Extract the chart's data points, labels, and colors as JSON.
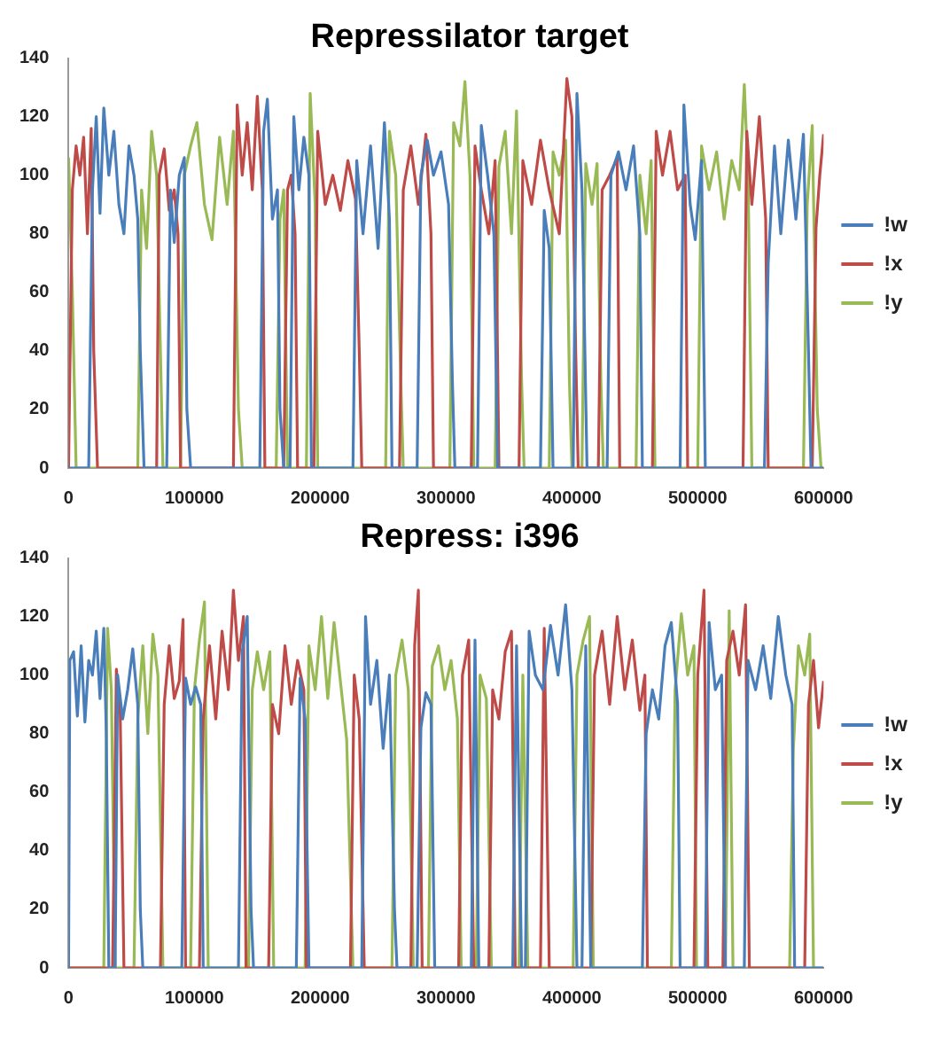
{
  "chart_data": [
    {
      "type": "line",
      "title": "Repressilator target",
      "xlim": [
        0,
        600000
      ],
      "xticks": [
        0,
        100000,
        200000,
        300000,
        400000,
        500000,
        600000
      ],
      "ylim": [
        0,
        140
      ],
      "yticks": [
        0,
        20,
        40,
        60,
        80,
        100,
        120,
        140
      ],
      "grid": false,
      "legend": "right",
      "marker": "none",
      "line_style": "solid",
      "series": [
        {
          "name": "!w",
          "color": "#4a7ebb",
          "x": [
            0,
            16000,
            19000,
            22000,
            25000,
            28000,
            32000,
            36000,
            40000,
            44000,
            48000,
            52000,
            55000,
            57000,
            60000,
            78000,
            81000,
            84000,
            88000,
            92000,
            94000,
            97000,
            152000,
            155000,
            158000,
            162000,
            166000,
            168000,
            171000,
            176000,
            179000,
            183000,
            187000,
            191000,
            193000,
            226000,
            229000,
            234000,
            240000,
            246000,
            251000,
            255000,
            257000,
            277000,
            280000,
            285000,
            290000,
            296000,
            302000,
            305000,
            307000,
            325000,
            328000,
            333000,
            338000,
            341000,
            375000,
            378000,
            382000,
            385000,
            401000,
            404000,
            408000,
            412000,
            428000,
            431000,
            437000,
            443000,
            449000,
            454000,
            456000,
            486000,
            489000,
            494000,
            498000,
            503000,
            506000,
            553000,
            556000,
            561000,
            566000,
            572000,
            578000,
            584000,
            588000,
            590000,
            600000
          ],
          "values": [
            0,
            0,
            95,
            120,
            87,
            123,
            100,
            115,
            90,
            80,
            110,
            100,
            85,
            40,
            0,
            0,
            95,
            77,
            100,
            106,
            20,
            0,
            0,
            115,
            126,
            85,
            95,
            20,
            0,
            0,
            120,
            95,
            113,
            100,
            0,
            0,
            105,
            80,
            110,
            75,
            118,
            85,
            0,
            0,
            100,
            112,
            100,
            108,
            90,
            30,
            0,
            0,
            117,
            100,
            80,
            0,
            0,
            88,
            75,
            0,
            0,
            128,
            95,
            0,
            0,
            100,
            108,
            95,
            110,
            80,
            0,
            0,
            124,
            90,
            78,
            105,
            0,
            0,
            70,
            110,
            80,
            112,
            85,
            114,
            40,
            0,
            0
          ]
        },
        {
          "name": "!x",
          "color": "#be4b48",
          "x": [
            0,
            3000,
            6000,
            9000,
            12000,
            15000,
            18000,
            20000,
            23000,
            70000,
            72000,
            76000,
            80000,
            84000,
            87000,
            89000,
            131000,
            134000,
            138000,
            142000,
            146000,
            150000,
            154000,
            156000,
            171000,
            174000,
            177000,
            180000,
            182000,
            195000,
            198000,
            204000,
            210000,
            216000,
            222000,
            228000,
            231000,
            233000,
            263000,
            266000,
            272000,
            278000,
            284000,
            288000,
            290000,
            320000,
            323000,
            328000,
            334000,
            339000,
            342000,
            358000,
            361000,
            368000,
            375000,
            382000,
            390000,
            396000,
            400000,
            403000,
            405000,
            421000,
            424000,
            430000,
            436000,
            438000,
            464000,
            467000,
            472000,
            478000,
            484000,
            490000,
            492000,
            536000,
            539000,
            543000,
            549000,
            554000,
            556000,
            591000,
            594000,
            597000,
            600000
          ],
          "values": [
            0,
            95,
            110,
            100,
            113,
            80,
            116,
            40,
            0,
            0,
            100,
            109,
            88,
            95,
            80,
            0,
            0,
            124,
            100,
            118,
            95,
            127,
            95,
            0,
            0,
            95,
            100,
            80,
            0,
            0,
            115,
            90,
            100,
            88,
            105,
            92,
            40,
            0,
            0,
            95,
            110,
            90,
            114,
            80,
            0,
            0,
            110,
            95,
            80,
            105,
            0,
            0,
            105,
            90,
            112,
            95,
            80,
            133,
            120,
            40,
            0,
            0,
            95,
            100,
            106,
            0,
            0,
            115,
            100,
            115,
            95,
            100,
            0,
            0,
            115,
            90,
            120,
            85,
            0,
            0,
            82,
            100,
            114
          ]
        },
        {
          "name": "!y",
          "color": "#98b954",
          "x": [
            0,
            3000,
            6000,
            55000,
            58000,
            62000,
            66000,
            70000,
            73000,
            75000,
            89000,
            92000,
            97000,
            102000,
            108000,
            114000,
            120000,
            126000,
            131000,
            135000,
            138000,
            165000,
            168000,
            171000,
            174000,
            189000,
            192000,
            196000,
            198000,
            252000,
            255000,
            260000,
            264000,
            266000,
            303000,
            306000,
            311000,
            315000,
            319000,
            322000,
            339000,
            342000,
            347000,
            352000,
            356000,
            360000,
            362000,
            382000,
            385000,
            390000,
            395000,
            398000,
            400000,
            408000,
            411000,
            416000,
            420000,
            423000,
            425000,
            451000,
            454000,
            459000,
            463000,
            466000,
            500000,
            503000,
            509000,
            515000,
            521000,
            527000,
            533000,
            537000,
            540000,
            543000,
            584000,
            587000,
            591000,
            595000,
            598000,
            600000
          ],
          "values": [
            106,
            60,
            0,
            0,
            95,
            75,
            115,
            100,
            40,
            0,
            0,
            100,
            110,
            118,
            90,
            78,
            113,
            90,
            115,
            20,
            0,
            0,
            85,
            95,
            0,
            0,
            128,
            90,
            0,
            0,
            115,
            100,
            30,
            0,
            0,
            118,
            110,
            132,
            100,
            0,
            0,
            103,
            115,
            80,
            122,
            30,
            0,
            0,
            108,
            100,
            112,
            30,
            0,
            0,
            104,
            90,
            104,
            30,
            0,
            0,
            100,
            80,
            105,
            0,
            0,
            110,
            95,
            108,
            85,
            105,
            95,
            131,
            100,
            0,
            0,
            90,
            117,
            20,
            0,
            0
          ]
        }
      ]
    },
    {
      "type": "line",
      "title": "Repress: i396",
      "xlim": [
        0,
        600000
      ],
      "xticks": [
        0,
        100000,
        200000,
        300000,
        400000,
        500000,
        600000
      ],
      "ylim": [
        0,
        140
      ],
      "yticks": [
        0,
        20,
        40,
        60,
        80,
        100,
        120,
        140
      ],
      "grid": false,
      "legend": "right",
      "marker": "none",
      "line_style": "solid",
      "series": [
        {
          "name": "!w",
          "color": "#4a7ebb",
          "x": [
            0,
            1000,
            4000,
            7000,
            10000,
            13000,
            16000,
            19000,
            22000,
            25000,
            28000,
            30000,
            32000,
            37000,
            39000,
            43000,
            47000,
            51000,
            55000,
            57000,
            59000,
            90000,
            93000,
            97000,
            101000,
            105000,
            107000,
            135000,
            138000,
            142000,
            145000,
            147000,
            181000,
            184000,
            188000,
            191000,
            233000,
            236000,
            240000,
            245000,
            250000,
            255000,
            259000,
            261000,
            277000,
            280000,
            284000,
            288000,
            291000,
            320000,
            323000,
            326000,
            353000,
            356000,
            360000,
            363000,
            366000,
            371000,
            377000,
            383000,
            389000,
            395000,
            400000,
            404000,
            408000,
            411000,
            415000,
            456000,
            459000,
            464000,
            469000,
            474000,
            479000,
            484000,
            486000,
            506000,
            509000,
            514000,
            519000,
            522000,
            537000,
            540000,
            546000,
            552000,
            558000,
            564000,
            570000,
            575000,
            577000,
            600000
          ],
          "values": [
            0,
            105,
            108,
            86,
            110,
            84,
            105,
            100,
            115,
            92,
            116,
            80,
            0,
            0,
            100,
            85,
            95,
            109,
            90,
            20,
            0,
            0,
            99,
            90,
            96,
            90,
            0,
            0,
            108,
            120,
            20,
            0,
            0,
            99,
            85,
            0,
            0,
            120,
            90,
            105,
            75,
            100,
            20,
            0,
            0,
            82,
            94,
            90,
            0,
            0,
            112,
            0,
            0,
            110,
            0,
            0,
            115,
            100,
            95,
            117,
            100,
            124,
            95,
            0,
            0,
            110,
            0,
            0,
            80,
            95,
            85,
            110,
            118,
            90,
            0,
            0,
            118,
            95,
            100,
            0,
            0,
            105,
            95,
            110,
            92,
            120,
            100,
            90,
            0,
            0
          ]
        },
        {
          "name": "!x",
          "color": "#be4b48",
          "x": [
            0,
            35000,
            38000,
            41000,
            44000,
            73000,
            76000,
            80000,
            84000,
            88000,
            91000,
            93000,
            104000,
            107000,
            112000,
            117000,
            122000,
            127000,
            131000,
            135000,
            139000,
            141000,
            159000,
            162000,
            167000,
            172000,
            177000,
            182000,
            187000,
            189000,
            224000,
            227000,
            231000,
            235000,
            272000,
            275000,
            278000,
            281000,
            310000,
            313000,
            318000,
            322000,
            334000,
            337000,
            342000,
            347000,
            352000,
            355000,
            375000,
            378000,
            382000,
            415000,
            418000,
            424000,
            430000,
            436000,
            442000,
            448000,
            454000,
            458000,
            460000,
            497000,
            500000,
            505000,
            508000,
            520000,
            523000,
            528000,
            533000,
            538000,
            541000,
            585000,
            588000,
            592000,
            596000,
            600000
          ],
          "values": [
            0,
            0,
            102,
            88,
            0,
            0,
            90,
            110,
            92,
            98,
            119,
            0,
            0,
            85,
            110,
            85,
            115,
            95,
            129,
            105,
            120,
            0,
            0,
            90,
            80,
            110,
            90,
            105,
            95,
            0,
            0,
            100,
            85,
            0,
            0,
            110,
            129,
            0,
            0,
            100,
            112,
            0,
            0,
            95,
            85,
            108,
            115,
            0,
            0,
            116,
            0,
            0,
            100,
            115,
            90,
            120,
            95,
            112,
            88,
            100,
            0,
            0,
            100,
            129,
            0,
            0,
            105,
            115,
            100,
            124,
            0,
            0,
            90,
            105,
            82,
            98
          ]
        },
        {
          "name": "!y",
          "color": "#98b954",
          "x": [
            0,
            28000,
            31000,
            34000,
            37000,
            52000,
            55000,
            59000,
            63000,
            67000,
            71000,
            75000,
            97000,
            100000,
            104000,
            108000,
            111000,
            143000,
            146000,
            150000,
            155000,
            160000,
            163000,
            188000,
            191000,
            196000,
            201000,
            206000,
            211000,
            216000,
            221000,
            226000,
            257000,
            260000,
            265000,
            270000,
            274000,
            286000,
            289000,
            294000,
            299000,
            304000,
            309000,
            312000,
            324000,
            327000,
            332000,
            336000,
            358000,
            361000,
            365000,
            401000,
            404000,
            409000,
            414000,
            417000,
            479000,
            482000,
            487000,
            492000,
            497000,
            499000,
            522000,
            525000,
            528000,
            573000,
            576000,
            580000,
            585000,
            589000,
            592000,
            600000
          ],
          "values": [
            0,
            0,
            116,
            95,
            0,
            0,
            85,
            110,
            80,
            114,
            100,
            0,
            0,
            95,
            112,
            125,
            0,
            0,
            95,
            108,
            95,
            108,
            0,
            0,
            110,
            95,
            120,
            92,
            118,
            98,
            78,
            0,
            0,
            100,
            112,
            95,
            0,
            0,
            103,
            110,
            95,
            105,
            85,
            0,
            0,
            100,
            92,
            0,
            0,
            100,
            0,
            0,
            100,
            112,
            120,
            0,
            0,
            95,
            121,
            100,
            110,
            0,
            0,
            122,
            0,
            0,
            75,
            110,
            100,
            114,
            0,
            0
          ]
        }
      ]
    }
  ]
}
